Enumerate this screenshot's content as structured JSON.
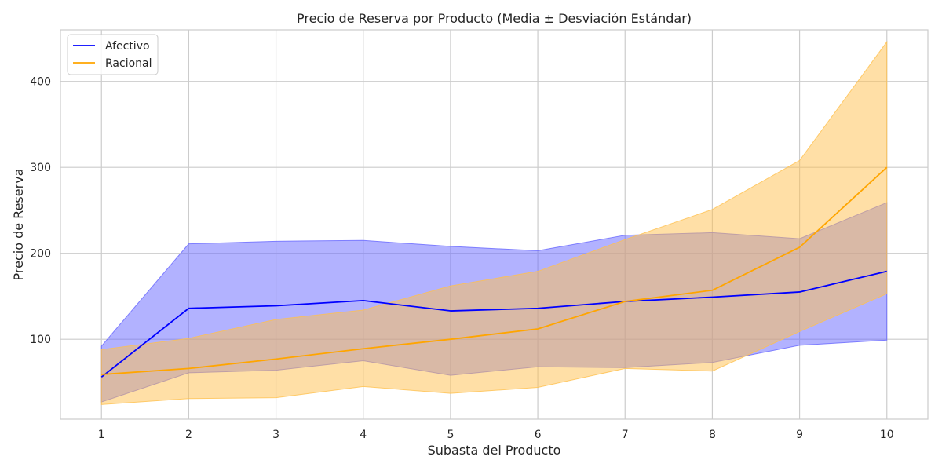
{
  "chart_data": {
    "type": "line",
    "title": "Precio de Reserva por Producto (Media ± Desviación Estándar)",
    "xlabel": "Subasta del Producto",
    "ylabel": "Precio de Reserva",
    "x": [
      1,
      2,
      3,
      4,
      5,
      6,
      7,
      8,
      9,
      10
    ],
    "xlim": [
      0.53,
      10.47
    ],
    "ylim": [
      7,
      460
    ],
    "xticks": [
      1,
      2,
      3,
      4,
      5,
      6,
      7,
      8,
      9,
      10
    ],
    "yticks": [
      100,
      200,
      300,
      400
    ],
    "grid": true,
    "legend_position": "top-left",
    "series": [
      {
        "name": "Afectivo",
        "color": "#0000ff",
        "band_color": "#6666ff",
        "mean": [
          56,
          136,
          139,
          145,
          133,
          136,
          144,
          149,
          155,
          179
        ],
        "upper": [
          92,
          211,
          214,
          215,
          208,
          203,
          221,
          224,
          217,
          259
        ],
        "lower": [
          27,
          61,
          64,
          75,
          58,
          68,
          67,
          73,
          93,
          99
        ]
      },
      {
        "name": "Racional",
        "color": "#ffa500",
        "band_color": "#ffc04d",
        "mean": [
          59,
          66,
          77,
          89,
          100,
          112,
          144,
          157,
          207,
          300
        ],
        "upper": [
          88,
          101,
          123,
          134,
          162,
          179,
          216,
          251,
          308,
          446
        ],
        "lower": [
          24,
          31,
          32,
          45,
          37,
          44,
          66,
          63,
          109,
          153
        ]
      }
    ]
  }
}
